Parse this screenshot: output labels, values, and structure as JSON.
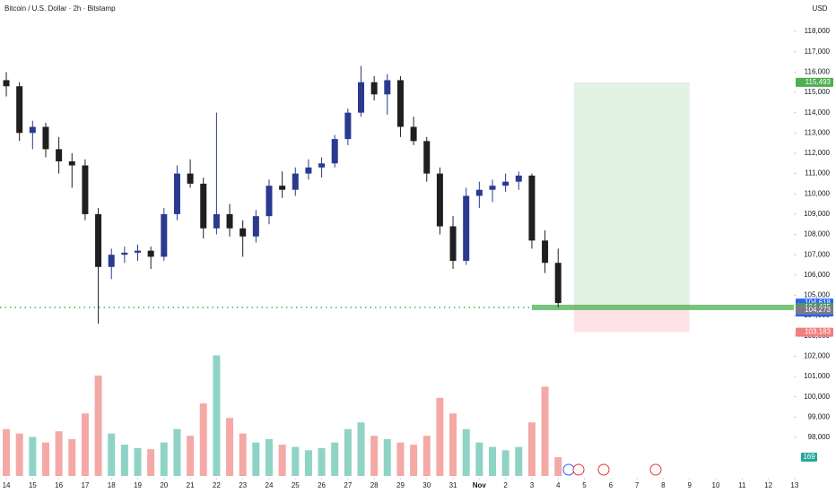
{
  "chart_data": {
    "type": "candlestick",
    "title": "Bitcoin / U.S. Dollar · 2h · Bitstamp",
    "currency": "USD",
    "x": [
      0,
      0.5,
      1,
      1.5,
      2,
      2.5,
      3,
      3.5,
      4,
      4.5,
      5,
      5.5,
      6,
      6.5,
      7,
      7.5,
      8,
      8.5,
      9,
      9.5,
      10,
      10.5,
      11,
      11.5,
      12,
      12.5,
      13,
      13.5,
      14,
      14.5,
      15,
      15.5,
      16,
      16.5,
      17,
      17.5,
      18,
      18.5,
      19,
      19.5,
      20,
      20.5,
      21
    ],
    "open": [
      115600,
      115300,
      113000,
      113300,
      112200,
      111600,
      111400,
      109000,
      106400,
      107000,
      107100,
      107200,
      106900,
      109000,
      111000,
      110500,
      108300,
      109000,
      108300,
      107900,
      108900,
      110400,
      110200,
      111000,
      111300,
      111500,
      112700,
      114000,
      115500,
      114900,
      115600,
      113300,
      112600,
      111000,
      108400,
      106700,
      109900,
      110200,
      110400,
      110600,
      110900,
      107700,
      106600
    ],
    "high": [
      116000,
      115500,
      113600,
      113500,
      112800,
      112000,
      111700,
      109300,
      107300,
      107400,
      107500,
      107400,
      109300,
      111400,
      111700,
      110800,
      114000,
      109500,
      108700,
      109200,
      110700,
      111100,
      111300,
      111700,
      111800,
      112900,
      114200,
      116300,
      115800,
      115900,
      115800,
      113800,
      112800,
      111300,
      108900,
      110300,
      110600,
      110700,
      111000,
      111100,
      111000,
      108200,
      107300
    ],
    "low": [
      114800,
      112600,
      112200,
      111800,
      111000,
      110300,
      108700,
      103600,
      105800,
      106600,
      106700,
      106300,
      106700,
      108700,
      110300,
      107800,
      108000,
      107900,
      106900,
      107600,
      108500,
      109800,
      109900,
      110700,
      110800,
      111300,
      112400,
      113800,
      114600,
      113900,
      112800,
      112400,
      110600,
      108000,
      106300,
      106500,
      109300,
      109600,
      110100,
      110200,
      107300,
      106100,
      104400
    ],
    "close": [
      115300,
      113000,
      113300,
      112200,
      111600,
      111400,
      109000,
      106400,
      107000,
      107100,
      107200,
      106900,
      109000,
      111000,
      110500,
      108300,
      109000,
      108300,
      107900,
      108900,
      110400,
      110200,
      111000,
      111300,
      111500,
      112700,
      114000,
      115500,
      114900,
      115600,
      113300,
      112600,
      111000,
      108400,
      106700,
      109900,
      110200,
      110400,
      110600,
      110900,
      107700,
      106600,
      104618
    ],
    "volume": [
      420,
      380,
      350,
      300,
      400,
      330,
      560,
      900,
      380,
      280,
      250,
      240,
      300,
      420,
      360,
      650,
      1080,
      520,
      380,
      300,
      330,
      280,
      260,
      230,
      250,
      300,
      420,
      480,
      360,
      330,
      300,
      280,
      360,
      700,
      560,
      420,
      300,
      260,
      230,
      260,
      480,
      800,
      169
    ],
    "up_color": "#2a3a8f",
    "down_color": "#1f1f1f",
    "volume_up_color": "#8fd3c5",
    "volume_down_color": "#f4a9a6",
    "xlim": [
      -0.24,
      29.97
    ],
    "ylim": [
      96100,
      119550
    ],
    "volume_lim": [
      0,
      1100
    ],
    "xticks": [
      {
        "value": 0,
        "label": "14"
      },
      {
        "value": 1,
        "label": "15"
      },
      {
        "value": 2,
        "label": "16"
      },
      {
        "value": 3,
        "label": "17"
      },
      {
        "value": 4,
        "label": "18"
      },
      {
        "value": 5,
        "label": "19"
      },
      {
        "value": 6,
        "label": "20"
      },
      {
        "value": 7,
        "label": "21"
      },
      {
        "value": 8,
        "label": "22"
      },
      {
        "value": 9,
        "label": "23"
      },
      {
        "value": 10,
        "label": "24"
      },
      {
        "value": 11,
        "label": "25"
      },
      {
        "value": 12,
        "label": "26"
      },
      {
        "value": 13,
        "label": "27"
      },
      {
        "value": 14,
        "label": "28"
      },
      {
        "value": 15,
        "label": "29"
      },
      {
        "value": 16,
        "label": "30"
      },
      {
        "value": 17,
        "label": "31"
      },
      {
        "value": 18,
        "label": "Nov"
      },
      {
        "value": 19,
        "label": "2"
      },
      {
        "value": 20,
        "label": "3"
      },
      {
        "value": 21,
        "label": "4"
      },
      {
        "value": 22,
        "label": "5"
      },
      {
        "value": 23,
        "label": "6"
      },
      {
        "value": 24,
        "label": "7"
      },
      {
        "value": 25,
        "label": "8"
      },
      {
        "value": 26,
        "label": "9"
      },
      {
        "value": 27,
        "label": "10"
      },
      {
        "value": 28,
        "label": "11"
      },
      {
        "value": 29,
        "label": "12"
      },
      {
        "value": 30,
        "label": "13"
      }
    ],
    "yticks": [
      {
        "value": 98000,
        "label": "98,000"
      },
      {
        "value": 99000,
        "label": "99,000"
      },
      {
        "value": 100000,
        "label": "100,000"
      },
      {
        "value": 101000,
        "label": "101,000"
      },
      {
        "value": 102000,
        "label": "102,000"
      },
      {
        "value": 103000,
        "label": "103,000"
      },
      {
        "value": 104000,
        "label": "104,000"
      },
      {
        "value": 105000,
        "label": "105,000"
      },
      {
        "value": 106000,
        "label": "106,000"
      },
      {
        "value": 107000,
        "label": "107,000"
      },
      {
        "value": 108000,
        "label": "108,000"
      },
      {
        "value": 109000,
        "label": "109,000"
      },
      {
        "value": 110000,
        "label": "110,000"
      },
      {
        "value": 111000,
        "label": "111,000"
      },
      {
        "value": 112000,
        "label": "112,000"
      },
      {
        "value": 113000,
        "label": "113,000"
      },
      {
        "value": 114000,
        "label": "114,000"
      },
      {
        "value": 115000,
        "label": "115,000"
      },
      {
        "value": 116000,
        "label": "116,000"
      },
      {
        "value": 117000,
        "label": "117,000"
      },
      {
        "value": 118000,
        "label": "118,000"
      }
    ],
    "position": {
      "x": [
        21.6,
        26.0
      ],
      "target": 115493,
      "entry": 104405,
      "stop": 103183,
      "entry_line_start": 20.0
    },
    "price_tags": [
      {
        "value": 115493,
        "label": "115,493",
        "color": "#4caf50"
      },
      {
        "value": 104618,
        "label": "104,618",
        "color": "#2962ff",
        "countdown": "01:11:36"
      },
      {
        "value": 104405,
        "label": "104,405",
        "color": "#43a047"
      },
      {
        "value": 104273,
        "label": "104,273",
        "color": "#787b86"
      },
      {
        "value": 103183,
        "label": "103,183",
        "color": "#ef7f7f"
      }
    ],
    "volume_tag": {
      "value": 169,
      "label": "169",
      "color": "#26a69a"
    }
  }
}
